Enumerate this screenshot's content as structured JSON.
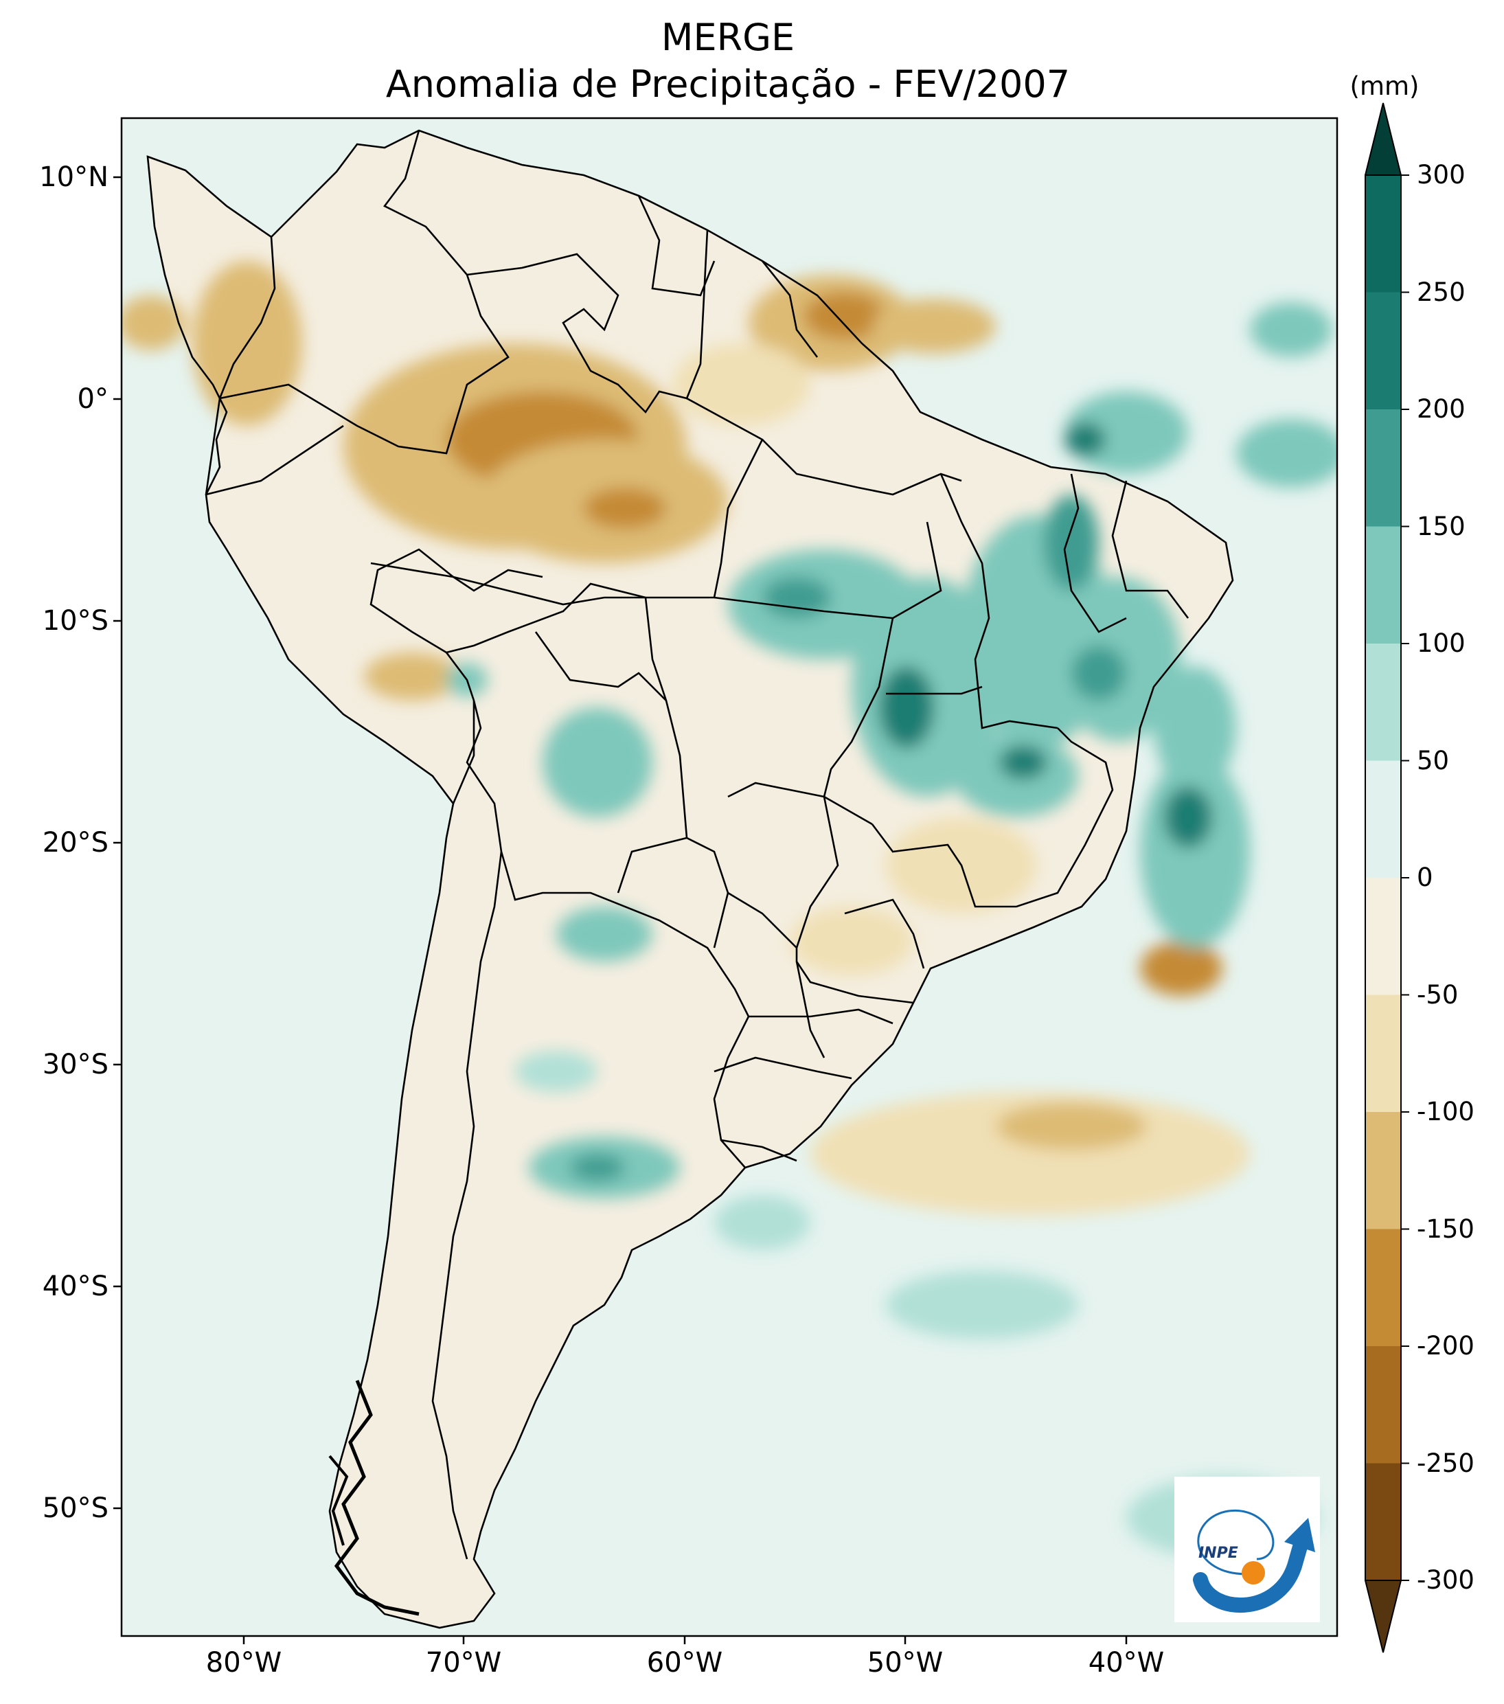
{
  "title": {
    "line1": "MERGE",
    "line2": "Anomalia de Precipitação - FEV/2007"
  },
  "colorbar": {
    "unit": "(mm)",
    "tick_labels": [
      "300",
      "250",
      "200",
      "150",
      "100",
      "50",
      "0",
      "-50",
      "-100",
      "-150",
      "-200",
      "-250",
      "-300"
    ],
    "levels": [
      {
        "from": 250,
        "to": 300,
        "color": "#0d6b5f"
      },
      {
        "from": 200,
        "to": 250,
        "color": "#1b7d72"
      },
      {
        "from": 150,
        "to": 200,
        "color": "#3f9c91"
      },
      {
        "from": 100,
        "to": 150,
        "color": "#7ec8bb"
      },
      {
        "from": 50,
        "to": 100,
        "color": "#b1e0d7"
      },
      {
        "from": 0,
        "to": 50,
        "color": "#e1f1ed"
      },
      {
        "from": -50,
        "to": 0,
        "color": "#f5efe0"
      },
      {
        "from": -100,
        "to": -50,
        "color": "#f0e0b5"
      },
      {
        "from": -150,
        "to": -100,
        "color": "#ddbb75"
      },
      {
        "from": -200,
        "to": -150,
        "color": "#c58a34"
      },
      {
        "from": -250,
        "to": -200,
        "color": "#a86c20"
      },
      {
        "from": -300,
        "to": -250,
        "color": "#7a4a12"
      }
    ],
    "extend_max_color": "#033f36",
    "extend_min_color": "#553510"
  },
  "axes": {
    "lat_labels": [
      "10°N",
      "0°",
      "10°S",
      "20°S",
      "30°S",
      "40°S",
      "50°S"
    ],
    "lon_labels": [
      "80°W",
      "70°W",
      "60°W",
      "50°W",
      "40°W"
    ]
  },
  "map_colors": {
    "ocean": "#e6f3ef",
    "land": "#f4eee0",
    "border": "#000000"
  },
  "logo": {
    "text": "INPE",
    "blue": "#1a6fb5",
    "orange": "#ef8a17"
  }
}
